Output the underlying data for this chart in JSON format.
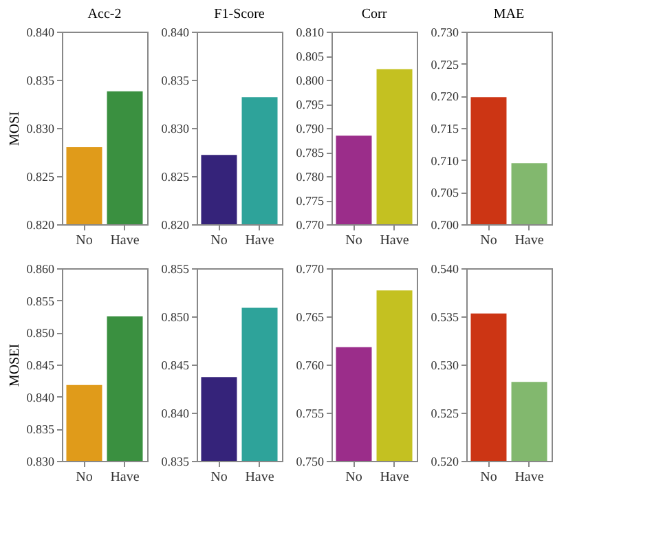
{
  "chart_data": [
    {
      "type": "bar",
      "title": "Acc-2",
      "ylabel": "MOSI",
      "categories": [
        "No",
        "Have"
      ],
      "values": [
        0.828,
        0.8338
      ],
      "colors": [
        "#e09b1a",
        "#3a9040"
      ],
      "ylim": [
        0.82,
        0.84
      ],
      "yticks": [
        {
          "value": 0.82,
          "label": "0.820"
        },
        {
          "value": 0.825,
          "label": "0.825"
        },
        {
          "value": 0.83,
          "label": "0.830"
        },
        {
          "value": 0.835,
          "label": "0.835"
        },
        {
          "value": 0.84,
          "label": "0.840"
        }
      ],
      "grid": false
    },
    {
      "type": "bar",
      "title": "F1-Score",
      "categories": [
        "No",
        "Have"
      ],
      "values": [
        0.8272,
        0.8332
      ],
      "colors": [
        "#35237a",
        "#2ea39a"
      ],
      "ylim": [
        0.82,
        0.84
      ],
      "yticks": [
        {
          "value": 0.82,
          "label": "0.820"
        },
        {
          "value": 0.825,
          "label": "0.825"
        },
        {
          "value": 0.83,
          "label": "0.830"
        },
        {
          "value": 0.835,
          "label": "0.835"
        },
        {
          "value": 0.84,
          "label": "0.840"
        }
      ],
      "grid": false
    },
    {
      "type": "bar",
      "title": "Corr",
      "categories": [
        "No",
        "Have"
      ],
      "values": [
        0.7884,
        0.8022
      ],
      "colors": [
        "#9b2d8a",
        "#c4c121"
      ],
      "ylim": [
        0.77,
        0.81
      ],
      "yticks": [
        {
          "value": 0.77,
          "label": "0.770"
        },
        0.775,
        {
          "value": 0.78,
          "label": "0.780"
        },
        0.785,
        {
          "value": 0.79,
          "label": "0.790"
        },
        0.795,
        {
          "value": 0.8,
          "label": "0.800"
        },
        0.805,
        {
          "value": 0.81,
          "label": "0.810"
        }
      ],
      "grid": false
    },
    {
      "type": "bar",
      "title": "MAE",
      "categories": [
        "No",
        "Have"
      ],
      "values": [
        0.7198,
        0.7095
      ],
      "colors": [
        "#cc3514",
        "#82b86e"
      ],
      "ylim": [
        0.7,
        0.73
      ],
      "yticks": [
        {
          "value": 0.7,
          "label": "0.700"
        },
        0.705,
        {
          "value": 0.71,
          "label": "0.710"
        },
        0.715,
        {
          "value": 0.72,
          "label": "0.720"
        },
        0.725,
        {
          "value": 0.73,
          "label": "0.730"
        }
      ],
      "grid": false
    },
    {
      "type": "bar",
      "ylabel": "MOSEI",
      "categories": [
        "No",
        "Have"
      ],
      "values": [
        0.8418,
        0.8525
      ],
      "colors": [
        "#e09b1a",
        "#3a9040"
      ],
      "ylim": [
        0.83,
        0.86
      ],
      "yticks": [
        {
          "value": 0.83,
          "label": "0.830"
        },
        0.835,
        {
          "value": 0.84,
          "label": "0.840"
        },
        0.845,
        {
          "value": 0.85,
          "label": "0.850"
        },
        0.855,
        {
          "value": 0.86,
          "label": "0.860"
        }
      ],
      "grid": false
    },
    {
      "type": "bar",
      "categories": [
        "No",
        "Have"
      ],
      "values": [
        0.8437,
        0.8509
      ],
      "colors": [
        "#35237a",
        "#2ea39a"
      ],
      "ylim": [
        0.835,
        0.855
      ],
      "yticks": [
        0.835,
        {
          "value": 0.84,
          "label": "0.840"
        },
        0.845,
        {
          "value": 0.85,
          "label": "0.850"
        },
        0.855
      ],
      "grid": false
    },
    {
      "type": "bar",
      "categories": [
        "No",
        "Have"
      ],
      "values": [
        0.7618,
        0.7677
      ],
      "colors": [
        "#9b2d8a",
        "#c4c121"
      ],
      "ylim": [
        0.75,
        0.77
      ],
      "yticks": [
        {
          "value": 0.75,
          "label": "0.750"
        },
        0.755,
        {
          "value": 0.76,
          "label": "0.760"
        },
        0.765,
        {
          "value": 0.77,
          "label": "0.770"
        }
      ],
      "grid": false
    },
    {
      "type": "bar",
      "categories": [
        "No",
        "Have"
      ],
      "values": [
        0.5353,
        0.5282
      ],
      "colors": [
        "#cc3514",
        "#82b86e"
      ],
      "ylim": [
        0.52,
        0.54
      ],
      "yticks": [
        {
          "value": 0.52,
          "label": "0.520"
        },
        0.525,
        {
          "value": 0.53,
          "label": "0.530"
        },
        0.535,
        {
          "value": 0.54,
          "label": "0.540"
        }
      ],
      "grid": false
    }
  ]
}
